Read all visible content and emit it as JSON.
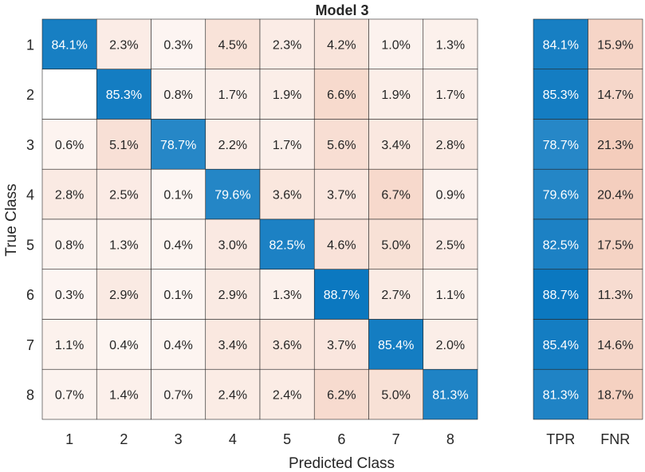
{
  "chart_data": {
    "type": "heatmap",
    "title": "Model 3",
    "xlabel": "Predicted Class",
    "ylabel": "True Class",
    "x_categories": [
      "1",
      "2",
      "3",
      "4",
      "5",
      "6",
      "7",
      "8"
    ],
    "y_categories": [
      "1",
      "2",
      "3",
      "4",
      "5",
      "6",
      "7",
      "8"
    ],
    "matrix": [
      [
        84.1,
        2.3,
        0.3,
        4.5,
        2.3,
        4.2,
        1.0,
        1.3
      ],
      [
        null,
        85.3,
        0.8,
        1.7,
        1.9,
        6.6,
        1.9,
        1.7
      ],
      [
        0.6,
        5.1,
        78.7,
        2.2,
        1.7,
        5.6,
        3.4,
        2.8
      ],
      [
        2.8,
        2.5,
        0.1,
        79.6,
        3.6,
        3.7,
        6.7,
        0.9
      ],
      [
        0.8,
        1.3,
        0.4,
        3.0,
        82.5,
        4.6,
        5.0,
        2.5
      ],
      [
        0.3,
        2.9,
        0.1,
        2.9,
        1.3,
        88.7,
        2.7,
        1.1
      ],
      [
        1.1,
        0.4,
        0.4,
        3.4,
        3.6,
        3.7,
        85.4,
        2.0
      ],
      [
        0.7,
        1.4,
        0.7,
        2.4,
        2.4,
        6.2,
        5.0,
        81.3
      ]
    ],
    "value_suffix": "%",
    "summary_columns": [
      "TPR",
      "FNR"
    ],
    "summary": [
      [
        84.1,
        15.9
      ],
      [
        85.3,
        14.7
      ],
      [
        78.7,
        21.3
      ],
      [
        79.6,
        20.4
      ],
      [
        82.5,
        17.5
      ],
      [
        88.7,
        11.3
      ],
      [
        85.4,
        14.6
      ],
      [
        81.3,
        18.7
      ]
    ],
    "colors": {
      "diagonal": "#0072bd",
      "offdiagonal": "#d95319"
    },
    "grid": true,
    "legend": "none"
  }
}
